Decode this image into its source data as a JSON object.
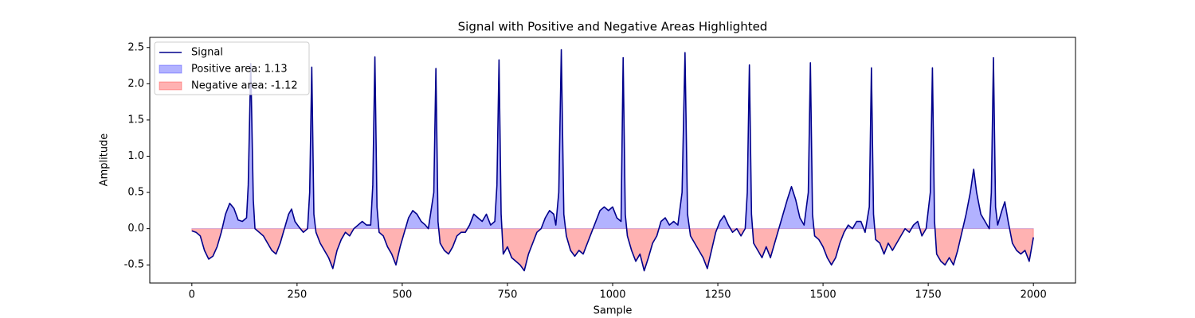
{
  "chart_data": {
    "type": "line",
    "title": "Signal with Positive and Negative Areas Highlighted",
    "xlabel": "Sample",
    "ylabel": "Amplitude",
    "xlim": [
      -100,
      2100
    ],
    "xticks": [
      0,
      250,
      500,
      750,
      1000,
      1250,
      1500,
      1750,
      2000
    ],
    "ylim": [
      -0.75,
      2.64
    ],
    "yticks": [
      -0.5,
      {
        "value": 0,
        "label": "0.0"
      },
      0.5,
      {
        "value": 1,
        "label": "1.0"
      },
      1.5,
      {
        "value": 2,
        "label": "2.0"
      },
      2.5
    ],
    "legend": "upper left",
    "x": [
      0,
      10,
      20,
      30,
      40,
      50,
      60,
      70,
      80,
      90,
      100,
      110,
      120,
      130,
      134,
      140,
      146,
      150,
      160,
      170,
      180,
      190,
      200,
      210,
      220,
      230,
      237,
      245,
      255,
      265,
      275,
      280,
      285,
      290,
      295,
      305,
      315,
      325,
      335,
      345,
      355,
      365,
      375,
      385,
      395,
      405,
      415,
      425,
      430,
      435,
      440,
      445,
      455,
      465,
      475,
      485,
      495,
      505,
      515,
      525,
      535,
      545,
      555,
      562,
      575,
      580,
      585,
      590,
      600,
      610,
      620,
      630,
      640,
      650,
      660,
      670,
      680,
      690,
      700,
      710,
      720,
      725,
      730,
      735,
      740,
      750,
      760,
      770,
      780,
      790,
      800,
      810,
      820,
      830,
      840,
      850,
      860,
      865,
      872,
      878,
      884,
      890,
      900,
      910,
      920,
      930,
      940,
      950,
      960,
      970,
      980,
      990,
      1000,
      1010,
      1020,
      1025,
      1030,
      1035,
      1045,
      1055,
      1065,
      1075,
      1085,
      1095,
      1105,
      1115,
      1125,
      1135,
      1145,
      1155,
      1165,
      1172,
      1178,
      1185,
      1195,
      1205,
      1215,
      1225,
      1235,
      1245,
      1255,
      1265,
      1275,
      1285,
      1295,
      1305,
      1315,
      1320,
      1325,
      1330,
      1335,
      1345,
      1355,
      1365,
      1375,
      1385,
      1395,
      1405,
      1415,
      1425,
      1435,
      1445,
      1455,
      1465,
      1470,
      1475,
      1480,
      1490,
      1500,
      1510,
      1520,
      1530,
      1540,
      1550,
      1560,
      1570,
      1580,
      1590,
      1600,
      1610,
      1615,
      1620,
      1625,
      1635,
      1645,
      1655,
      1665,
      1675,
      1685,
      1695,
      1705,
      1715,
      1725,
      1735,
      1745,
      1755,
      1760,
      1765,
      1770,
      1780,
      1790,
      1800,
      1810,
      1820,
      1830,
      1840,
      1850,
      1858,
      1865,
      1875,
      1885,
      1895,
      1900,
      1905,
      1910,
      1915,
      1925,
      1932,
      1940,
      1950,
      1960,
      1970,
      1980,
      1990,
      2000
    ],
    "series": [
      {
        "name": "Signal",
        "color": "#00008b",
        "values": [
          -0.03,
          -0.05,
          -0.1,
          -0.3,
          -0.42,
          -0.38,
          -0.25,
          -0.05,
          0.2,
          0.35,
          0.28,
          0.12,
          0.1,
          0.15,
          0.6,
          2.28,
          0.4,
          0,
          -0.05,
          -0.1,
          -0.2,
          -0.3,
          -0.35,
          -0.2,
          0,
          0.2,
          0.27,
          0.1,
          0.02,
          -0.05,
          0,
          0.5,
          2.23,
          0.2,
          -0.05,
          -0.2,
          -0.3,
          -0.4,
          -0.55,
          -0.3,
          -0.15,
          -0.05,
          -0.1,
          0,
          0.05,
          0.1,
          0.05,
          0.05,
          0.6,
          2.37,
          0.3,
          -0.05,
          -0.1,
          -0.25,
          -0.35,
          -0.5,
          -0.25,
          -0.05,
          0.15,
          0.25,
          0.2,
          0.1,
          0.05,
          0,
          0.5,
          2.21,
          0.1,
          -0.2,
          -0.3,
          -0.35,
          -0.25,
          -0.1,
          -0.05,
          -0.05,
          0.05,
          0.2,
          0.15,
          0.1,
          0.2,
          0.05,
          0.1,
          0.6,
          2.33,
          0.2,
          -0.35,
          -0.25,
          -0.4,
          -0.45,
          -0.5,
          -0.58,
          -0.35,
          -0.2,
          -0.05,
          0,
          0.15,
          0.25,
          0.2,
          0.05,
          0.5,
          2.47,
          0.2,
          -0.1,
          -0.3,
          -0.38,
          -0.3,
          -0.35,
          -0.2,
          -0.05,
          0.1,
          0.25,
          0.3,
          0.25,
          0.3,
          0.15,
          0.1,
          2.36,
          0.2,
          -0.1,
          -0.3,
          -0.45,
          -0.35,
          -0.58,
          -0.4,
          -0.2,
          -0.1,
          0.1,
          0.15,
          0.05,
          0.1,
          0.05,
          0.5,
          2.43,
          0.2,
          -0.1,
          -0.2,
          -0.3,
          -0.4,
          -0.55,
          -0.3,
          -0.05,
          0.1,
          0.18,
          0.05,
          -0.05,
          0,
          -0.1,
          0,
          0.5,
          2.26,
          0.2,
          -0.2,
          -0.3,
          -0.4,
          -0.25,
          -0.4,
          -0.2,
          0,
          0.2,
          0.4,
          0.58,
          0.4,
          0.15,
          0.05,
          0.5,
          2.29,
          0.2,
          -0.1,
          -0.15,
          -0.25,
          -0.4,
          -0.5,
          -0.4,
          -0.2,
          -0.05,
          0.05,
          0,
          0.1,
          0.1,
          -0.05,
          0.3,
          2.22,
          0.2,
          -0.15,
          -0.2,
          -0.35,
          -0.2,
          -0.3,
          -0.2,
          -0.1,
          0,
          -0.05,
          0.05,
          0.1,
          -0.1,
          0,
          0.5,
          2.22,
          0.1,
          -0.35,
          -0.45,
          -0.5,
          -0.4,
          -0.5,
          -0.3,
          -0.05,
          0.2,
          0.5,
          0.82,
          0.5,
          0.2,
          0.1,
          0,
          0.5,
          2.36,
          0.3,
          0.05,
          0.25,
          0.37,
          0.1,
          -0.2,
          -0.3,
          -0.35,
          -0.3,
          -0.45,
          -0.12
        ]
      }
    ],
    "areas": [
      {
        "name": "Positive area: 1.13",
        "color": "#0000ff",
        "where": "above"
      },
      {
        "name": "Negative area: -1.12",
        "color": "#ff0000",
        "where": "below"
      }
    ]
  }
}
